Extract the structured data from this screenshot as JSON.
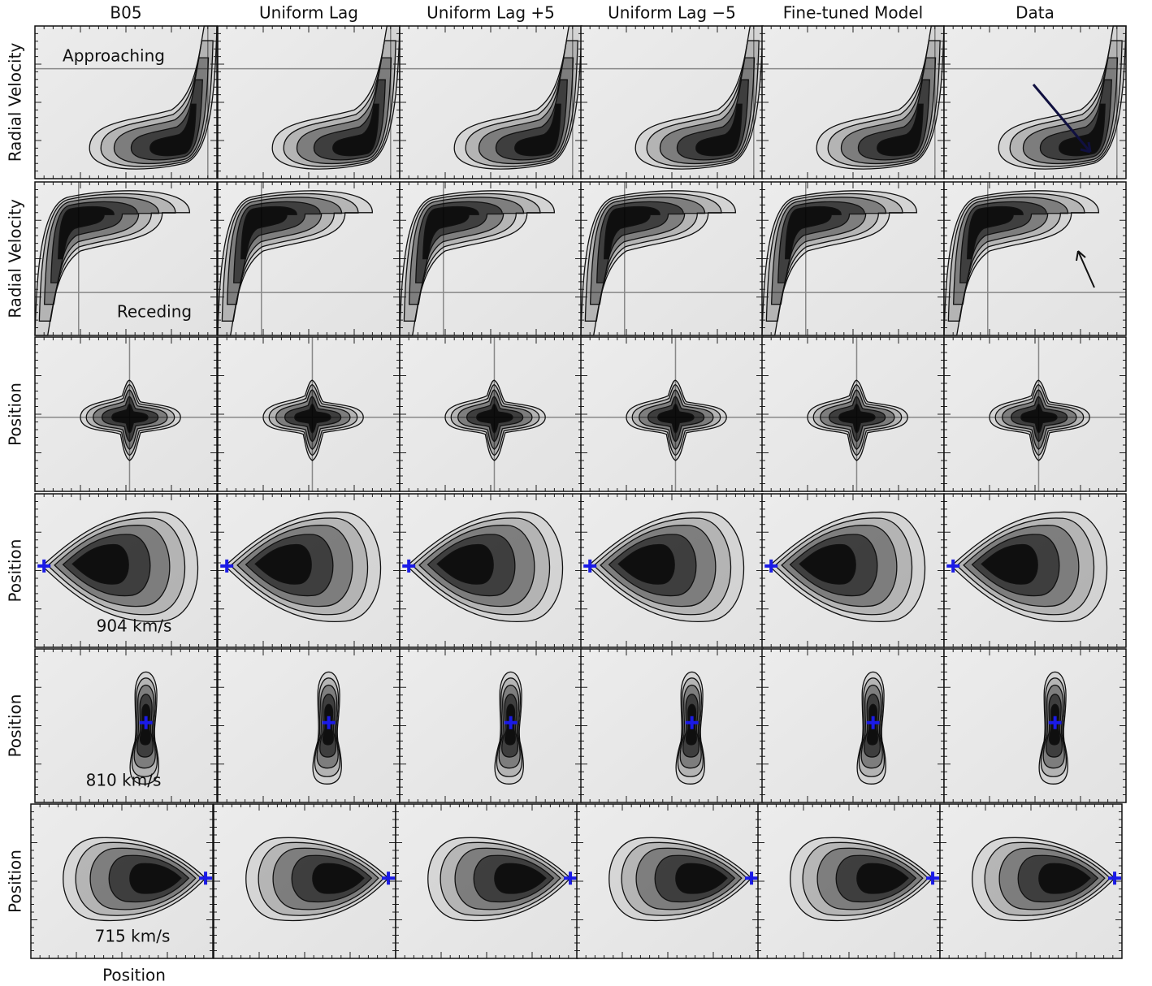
{
  "columns": [
    "B05",
    "Uniform Lag",
    "Uniform Lag +5",
    "Uniform Lag −5",
    "Fine-tuned Model",
    "Data"
  ],
  "row_labels": [
    "Radial Velocity",
    "Radial Velocity",
    "Position",
    "Position",
    "Position",
    "Position"
  ],
  "x_label": "Position",
  "annotations": {
    "approaching": "Approaching",
    "receding": "Receding",
    "v904": "904 km/s",
    "v810": "810 km/s",
    "v715": "715 km/s"
  }
}
